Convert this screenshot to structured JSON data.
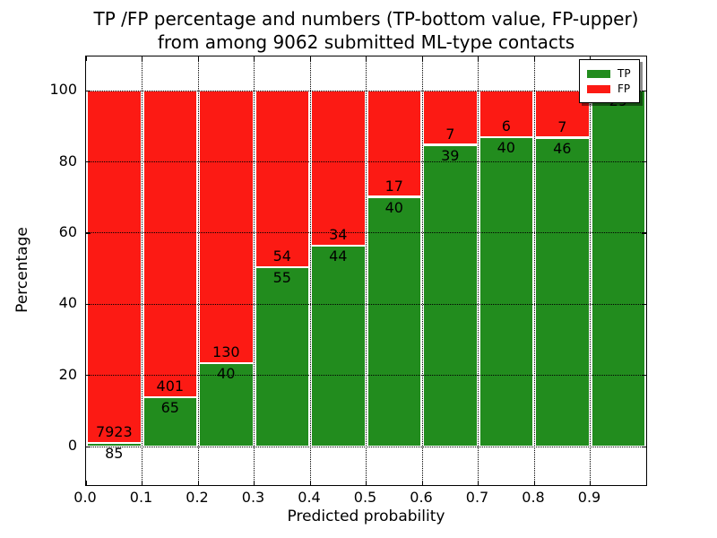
{
  "figure": {
    "title_line1": "TP /FP percentage and numbers (TP-bottom value, FP-upper)",
    "title_line2": "from among 9062 submitted ML-type contacts"
  },
  "chart_data": {
    "type": "bar",
    "subtype": "stacked-percentage-histogram",
    "title": "TP /FP percentage and numbers (TP-bottom value, FP-upper) from among 9062 submitted ML-type contacts",
    "xlabel": "Predicted probability",
    "ylabel": "Percentage",
    "total_contacts": 9062,
    "bin_start": [
      0.0,
      0.1,
      0.2,
      0.3,
      0.4,
      0.5,
      0.6,
      0.7,
      0.8,
      0.9
    ],
    "bin_width": 0.1,
    "series": [
      {
        "name": "TP",
        "color": "#228c1e",
        "values": [
          85,
          65,
          40,
          55,
          44,
          40,
          39,
          40,
          46,
          29
        ]
      },
      {
        "name": "FP",
        "color": "#fc1a14",
        "values": [
          7923,
          401,
          130,
          54,
          34,
          17,
          7,
          6,
          7,
          0
        ]
      }
    ],
    "tp_percent_of_bin": [
      1.06,
      13.95,
      23.53,
      50.46,
      56.41,
      70.18,
      84.78,
      86.96,
      86.79,
      100.0
    ],
    "xlim": [
      0.0,
      1.0
    ],
    "ylim": [
      -10.8,
      109.6
    ],
    "xticks": [
      0.0,
      0.1,
      0.2,
      0.3,
      0.4,
      0.5,
      0.6,
      0.7,
      0.8,
      0.9
    ],
    "xtick_labels": [
      "0.0",
      "0.1",
      "0.2",
      "0.3",
      "0.4",
      "0.5",
      "0.6",
      "0.7",
      "0.8",
      "0.9"
    ],
    "yticks": [
      0,
      20,
      40,
      60,
      80,
      100
    ],
    "ytick_labels": [
      "0",
      "20",
      "40",
      "60",
      "80",
      "100"
    ],
    "grid": {
      "style": "dotted",
      "color": "#000000"
    },
    "legend": {
      "position": "upper-right",
      "entries": [
        "TP",
        "FP"
      ]
    }
  },
  "colors": {
    "tp": "#228c1e",
    "fp": "#fc1a14",
    "background": "#ffffff",
    "text": "#000000"
  }
}
